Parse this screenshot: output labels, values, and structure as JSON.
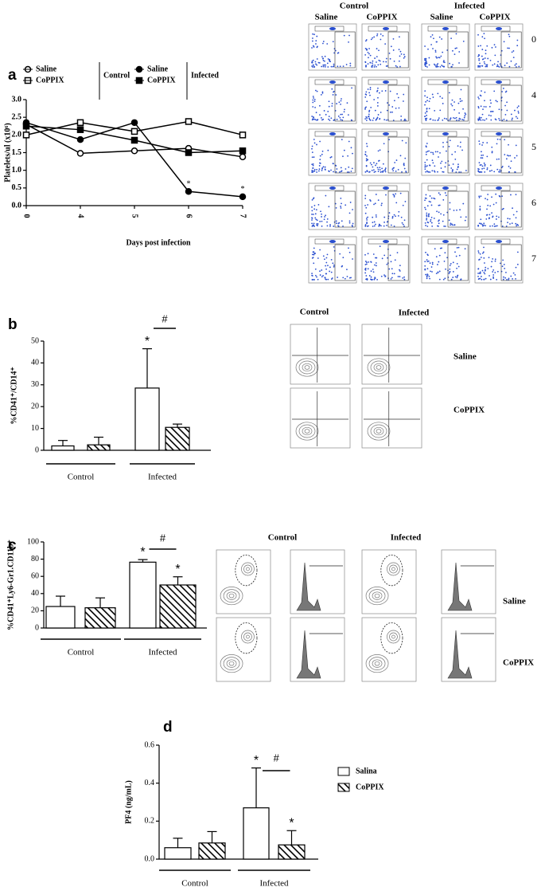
{
  "chart_data": [
    {
      "type": "line",
      "label": "a",
      "ylabel": "Platelets/ul (x10⁶)",
      "xlabel": "Days post infection",
      "categories": [
        "0",
        "4",
        "5",
        "6",
        "7"
      ],
      "ylim": [
        0,
        3
      ],
      "yticks": [
        {
          "value": 0,
          "label": "0.0"
        },
        0.5,
        {
          "value": 1,
          "label": "1.0"
        },
        1.5,
        {
          "value": 2,
          "label": "2.0"
        },
        2.5,
        {
          "value": 3,
          "label": "3.0"
        }
      ],
      "series": [
        {
          "name": "Saline",
          "group": "Control",
          "marker": "circle",
          "filled": false,
          "color": "#000000",
          "values": [
            2.3,
            1.48,
            1.55,
            1.62,
            1.38
          ]
        },
        {
          "name": "CoPPIX",
          "group": "Control",
          "marker": "square",
          "filled": false,
          "color": "#000000",
          "values": [
            2.0,
            2.35,
            2.1,
            2.38,
            2.0
          ]
        },
        {
          "name": "Saline",
          "group": "Infected",
          "marker": "circle",
          "filled": true,
          "color": "#000000",
          "values": [
            2.35,
            1.87,
            2.35,
            0.4,
            0.25
          ]
        },
        {
          "name": "CoPPIX",
          "group": "Infected",
          "marker": "square",
          "filled": true,
          "color": "#000000",
          "values": [
            2.25,
            2.15,
            1.85,
            1.5,
            1.55
          ]
        }
      ],
      "annotations": [
        {
          "text": "*",
          "series": 2,
          "index": 3
        },
        {
          "text": "*",
          "series": 2,
          "index": 4
        }
      ]
    },
    {
      "type": "bar",
      "label": "b",
      "ylabel": "%CD41⁺/CD14⁺",
      "categories": [
        "Control",
        "Infected"
      ],
      "ylim": [
        0,
        50
      ],
      "yticks": [
        0,
        10,
        20,
        30,
        40,
        50
      ],
      "series": [
        {
          "color": "#ffffff",
          "hatch": false,
          "values": [
            2,
            28.5
          ],
          "errors": [
            2.5,
            18
          ]
        },
        {
          "color": "#ffffff",
          "hatch": true,
          "values": [
            2.5,
            10.5
          ],
          "errors": [
            3.5,
            1.5
          ]
        }
      ],
      "annotations": [
        {
          "text": "*",
          "series": 0,
          "index": 1
        },
        {
          "text": "#",
          "index": 1
        }
      ]
    },
    {
      "type": "bar",
      "label": "c",
      "ylabel": "%CD41⁺Ly6-Gr1.CD11b⁺",
      "categories": [
        "Control",
        "Infected"
      ],
      "ylim": [
        0,
        100
      ],
      "yticks": [
        0,
        20,
        40,
        60,
        80,
        100
      ],
      "series": [
        {
          "color": "#ffffff",
          "hatch": false,
          "values": [
            25,
            76.5
          ],
          "errors": [
            12,
            3
          ]
        },
        {
          "color": "#ffffff",
          "hatch": true,
          "values": [
            23.5,
            50
          ],
          "errors": [
            11.5,
            9.5
          ]
        }
      ],
      "annotations": [
        {
          "text": "*",
          "series": 0,
          "index": 1
        },
        {
          "text": "*",
          "series": 1,
          "index": 1
        },
        {
          "text": "#",
          "index": 1
        }
      ]
    },
    {
      "type": "bar",
      "label": "d",
      "ylabel": "PF4 (ng/mL)",
      "categories": [
        "Control",
        "Infected"
      ],
      "ylim": [
        0,
        0.6
      ],
      "yticks": [
        {
          "value": 0,
          "label": "0.0"
        },
        0.2,
        0.4,
        0.6
      ],
      "series": [
        {
          "name": "Salina",
          "color": "#ffffff",
          "hatch": false,
          "values": [
            0.06,
            0.27
          ],
          "errors": [
            0.05,
            0.21
          ]
        },
        {
          "name": "CoPPIX",
          "color": "#ffffff",
          "hatch": true,
          "values": [
            0.085,
            0.075
          ],
          "errors": [
            0.06,
            0.075
          ]
        }
      ],
      "annotations": [
        {
          "text": "*",
          "series": 0,
          "index": 1
        },
        {
          "text": "*",
          "series": 1,
          "index": 1
        },
        {
          "text": "#",
          "index": 1
        }
      ]
    }
  ],
  "flow_panels": [
    {
      "columns": [
        "Control",
        "Infected"
      ],
      "subcolumns": [
        "Saline",
        "CoPPIX",
        "Saline",
        "CoPPIX"
      ],
      "rows": [
        "0",
        "4",
        "5",
        "6",
        "7"
      ]
    },
    {
      "columns": [
        "Control",
        "Infected"
      ],
      "rows": [
        "Saline",
        "CoPPIX"
      ]
    },
    {
      "columns": [
        "Control",
        "Infected"
      ],
      "rows": [
        "Saline",
        "CoPPIX"
      ]
    }
  ]
}
